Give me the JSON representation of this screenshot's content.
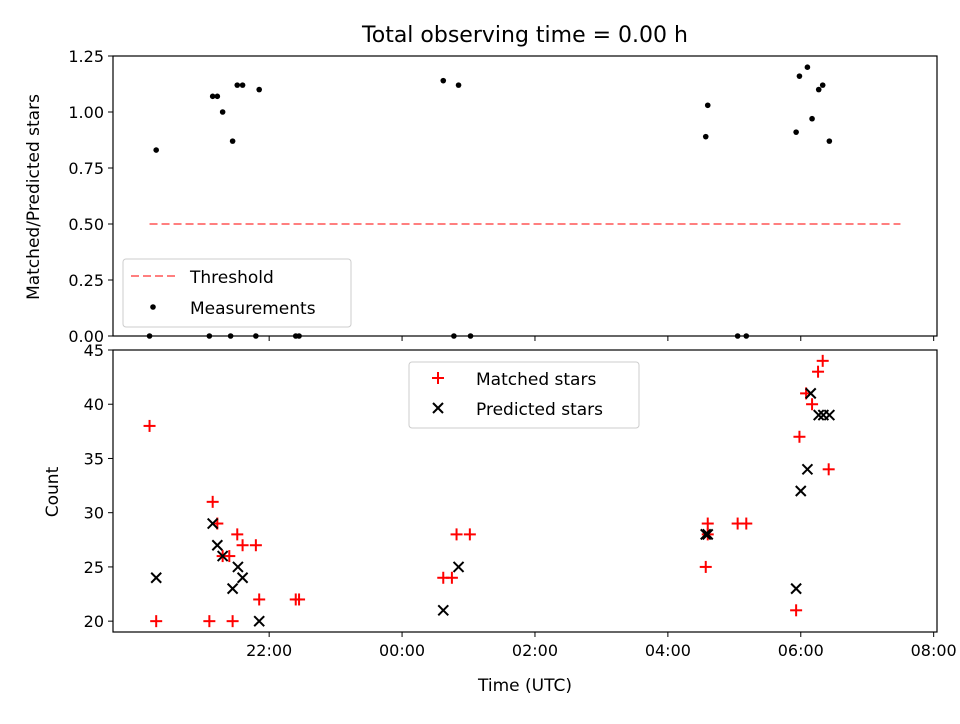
{
  "title": "Total observing time = 0.00 h",
  "chart_data": [
    {
      "type": "scatter",
      "title": "Total observing time = 0.00 h",
      "xlabel": "",
      "ylabel": "Matched/Predicted stars",
      "xlim": [
        -2.35,
        10.05
      ],
      "ylim": [
        0.0,
        1.25
      ],
      "yticks": [
        0.0,
        0.25,
        0.5,
        0.75,
        1.0,
        1.25
      ],
      "ytick_labels": [
        "0.00",
        "0.25",
        "0.50",
        "0.75",
        "1.00",
        "1.25"
      ],
      "legend_position": "lower-left",
      "series": [
        {
          "name": "Threshold",
          "kind": "line",
          "color": "#ff7f7f",
          "x": [
            -1.8,
            9.5
          ],
          "y": [
            0.5,
            0.5
          ]
        },
        {
          "name": "Measurements",
          "kind": "points",
          "color": "#000000",
          "points": [
            [
              -1.8,
              0.0
            ],
            [
              -1.7,
              0.83
            ],
            [
              -0.9,
              0.0
            ],
            [
              -0.85,
              1.07
            ],
            [
              -0.78,
              1.07
            ],
            [
              -0.7,
              1.0
            ],
            [
              -0.58,
              0.0
            ],
            [
              -0.55,
              0.87
            ],
            [
              -0.48,
              1.12
            ],
            [
              -0.4,
              1.12
            ],
            [
              -0.2,
              0.0
            ],
            [
              -0.15,
              1.1
            ],
            [
              0.4,
              0.0
            ],
            [
              0.45,
              0.0
            ],
            [
              2.62,
              1.14
            ],
            [
              2.78,
              0.0
            ],
            [
              2.85,
              1.12
            ],
            [
              3.03,
              0.0
            ],
            [
              6.57,
              0.89
            ],
            [
              6.6,
              1.03
            ],
            [
              7.05,
              0.0
            ],
            [
              7.18,
              0.0
            ],
            [
              7.93,
              0.91
            ],
            [
              7.98,
              1.16
            ],
            [
              8.1,
              1.2
            ],
            [
              8.17,
              0.97
            ],
            [
              8.27,
              1.1
            ],
            [
              8.33,
              1.12
            ],
            [
              8.43,
              0.87
            ]
          ]
        }
      ]
    },
    {
      "type": "scatter",
      "title": "",
      "xlabel": "Time (UTC)",
      "ylabel": "Count",
      "xlim": [
        -2.35,
        10.05
      ],
      "ylim": [
        19,
        45
      ],
      "yticks": [
        20,
        25,
        30,
        35,
        40,
        45
      ],
      "ytick_labels": [
        "20",
        "25",
        "30",
        "35",
        "40",
        "45"
      ],
      "xticks": [
        0,
        2,
        4,
        6,
        8,
        10
      ],
      "xtick_labels": [
        "22:00",
        "00:00",
        "02:00",
        "04:00",
        "06:00",
        "08:00"
      ],
      "legend_position": "upper-center",
      "series": [
        {
          "name": "Matched stars",
          "kind": "plus",
          "color": "#ff0000",
          "points": [
            [
              -1.8,
              38
            ],
            [
              -1.7,
              20
            ],
            [
              -0.9,
              20
            ],
            [
              -0.85,
              31
            ],
            [
              -0.78,
              29
            ],
            [
              -0.7,
              26
            ],
            [
              -0.6,
              26
            ],
            [
              -0.55,
              20
            ],
            [
              -0.48,
              28
            ],
            [
              -0.4,
              27
            ],
            [
              -0.2,
              27
            ],
            [
              -0.15,
              22
            ],
            [
              0.4,
              22
            ],
            [
              0.45,
              22
            ],
            [
              2.62,
              24
            ],
            [
              2.75,
              24
            ],
            [
              2.82,
              28
            ],
            [
              3.02,
              28
            ],
            [
              6.57,
              25
            ],
            [
              6.6,
              29
            ],
            [
              6.6,
              28
            ],
            [
              7.05,
              29
            ],
            [
              7.18,
              29
            ],
            [
              7.93,
              21
            ],
            [
              7.98,
              37
            ],
            [
              8.08,
              41
            ],
            [
              8.17,
              40
            ],
            [
              8.26,
              43
            ],
            [
              8.33,
              44
            ],
            [
              8.42,
              34
            ]
          ]
        },
        {
          "name": "Predicted stars",
          "kind": "cross",
          "color": "#000000",
          "points": [
            [
              -1.7,
              24
            ],
            [
              -0.85,
              29
            ],
            [
              -0.78,
              27
            ],
            [
              -0.7,
              26
            ],
            [
              -0.55,
              23
            ],
            [
              -0.47,
              25
            ],
            [
              -0.4,
              24
            ],
            [
              -0.15,
              20
            ],
            [
              2.62,
              21
            ],
            [
              2.85,
              25
            ],
            [
              6.57,
              28
            ],
            [
              6.6,
              28
            ],
            [
              7.93,
              23
            ],
            [
              8.0,
              32
            ],
            [
              8.1,
              34
            ],
            [
              8.15,
              41
            ],
            [
              8.27,
              39
            ],
            [
              8.34,
              39
            ],
            [
              8.43,
              39
            ]
          ]
        }
      ]
    }
  ]
}
